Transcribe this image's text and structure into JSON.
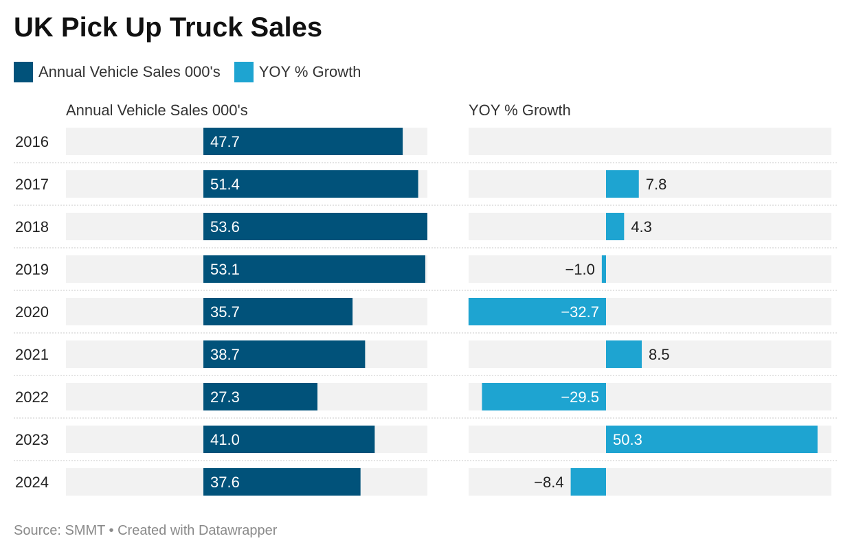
{
  "title": "UK Pick Up Truck Sales",
  "legend": [
    {
      "label": "Annual Vehicle Sales 000's",
      "color": "#01527a"
    },
    {
      "label": "YOY % Growth",
      "color": "#1ea4d1"
    }
  ],
  "colors": {
    "sales": "#01527a",
    "growth": "#1ea4d1",
    "track": "#f2f2f2"
  },
  "footer": "Source: SMMT • Created with Datawrapper",
  "chart_data": {
    "type": "bar",
    "orientation": "horizontal",
    "categories": [
      "2016",
      "2017",
      "2018",
      "2019",
      "2020",
      "2021",
      "2022",
      "2023",
      "2024"
    ],
    "series": [
      {
        "name": "Annual Vehicle Sales 000's",
        "values": [
          47.7,
          51.4,
          53.6,
          53.1,
          35.7,
          38.7,
          27.3,
          41.0,
          37.6
        ],
        "labels": [
          "47.7",
          "51.4",
          "53.6",
          "53.1",
          "35.7",
          "38.7",
          "27.3",
          "41.0",
          "37.6"
        ],
        "range": [
          0,
          53.6
        ]
      },
      {
        "name": "YOY % Growth",
        "values": [
          null,
          7.8,
          4.3,
          -1.0,
          -32.7,
          8.5,
          -29.5,
          50.3,
          -8.4
        ],
        "labels": [
          "",
          "7.8",
          "4.3",
          "−1.0",
          "−32.7",
          "8.5",
          "−29.5",
          "50.3",
          "−8.4"
        ],
        "range": [
          -32.7,
          54
        ]
      }
    ]
  }
}
